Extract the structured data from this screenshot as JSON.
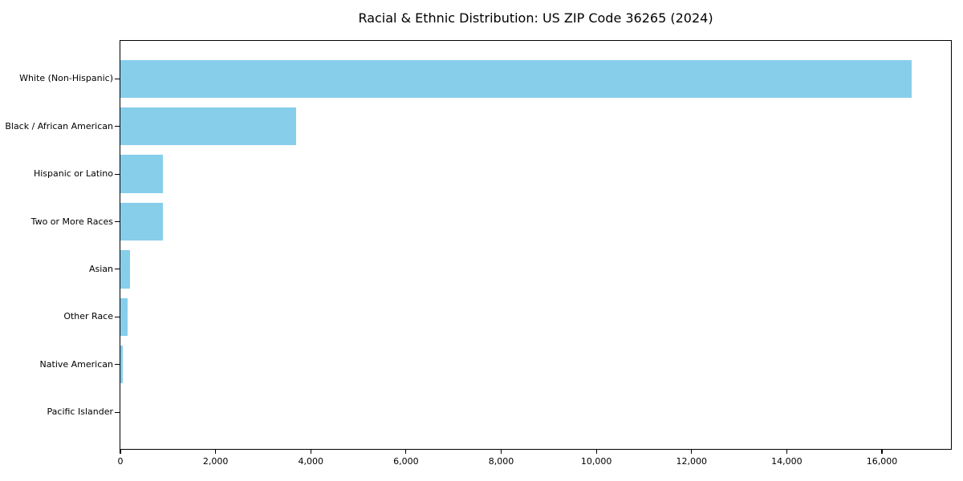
{
  "title": "Racial & Ethnic Distribution: US ZIP Code 36265 (2024)",
  "chart_data": {
    "type": "bar",
    "orientation": "horizontal",
    "title": "Racial & Ethnic Distribution: US ZIP Code 36265 (2024)",
    "xlabel": "",
    "ylabel": "",
    "categories": [
      "White (Non-Hispanic)",
      "Black / African American",
      "Hispanic or Latino",
      "Two or More Races",
      "Asian",
      "Other Race",
      "Native American",
      "Pacific Islander"
    ],
    "values": [
      16620,
      3685,
      890,
      895,
      200,
      145,
      50,
      0
    ],
    "x_ticks": [
      0,
      2000,
      4000,
      6000,
      8000,
      10000,
      12000,
      14000,
      16000
    ],
    "xlim": [
      0,
      17450
    ],
    "grid": false,
    "legend": false,
    "bar_color": "#87CEEB",
    "axis_color": "#000000",
    "text_color": "#000000",
    "background_color": "#ffffff"
  }
}
